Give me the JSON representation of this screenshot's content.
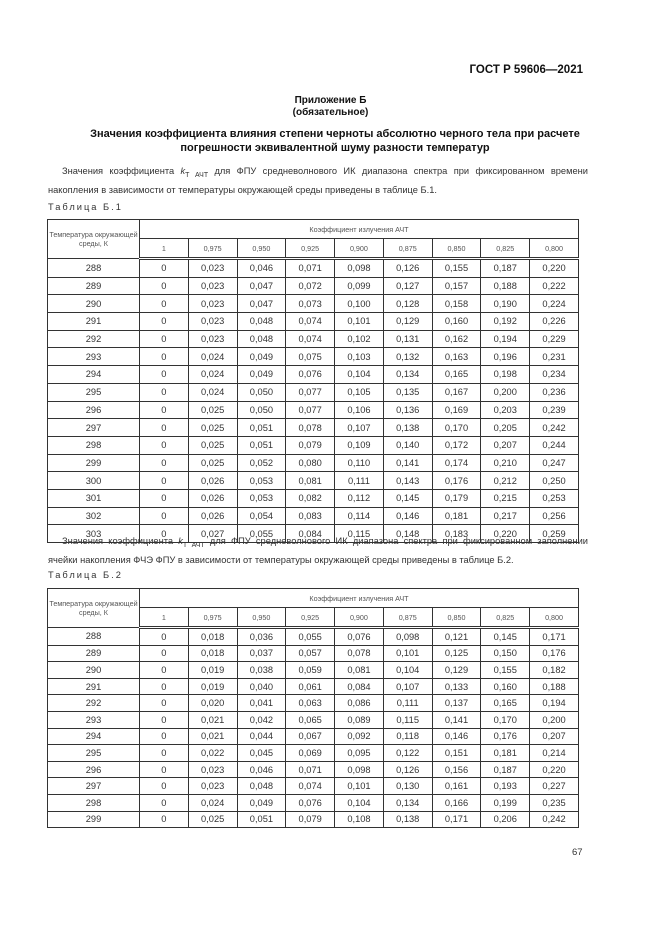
{
  "header": {
    "standard": "ГОСТ Р 59606—2021"
  },
  "appendix": {
    "title": "Приложение Б",
    "requirement": "(обязательное)"
  },
  "section_title": "Значения коэффициента влияния степени черноты абсолютно черного тела при расчете погрешности эквивалентной шуму разности температур",
  "coef_symbol": "k",
  "coef_subscript": "T АЧТ",
  "paragraph1": {
    "before": "Значения коэффициента ",
    "after": " для ФПУ средневолнового ИК диапазона спектра при фиксированном времени накопления в зависимости от температуры окружающей среды приведены в таблице Б.1."
  },
  "paragraph2": {
    "before": "Значения коэффициента ",
    "after": " для ФПУ средневолнового ИК диапазона спектра при фиксированном заполнении ячейки накопления ФЧЭ ФПУ в зависимости от температуры окружающей среды приведены в таблице Б.2."
  },
  "tables": [
    {
      "label": "Таблица Б.1",
      "temp_header": "Температура окружающей среды, К",
      "group_header": "Коэффициент излучения АЧТ",
      "columns": [
        "1",
        "0,975",
        "0,950",
        "0,925",
        "0,900",
        "0,875",
        "0,850",
        "0,825",
        "0,800"
      ],
      "rows": [
        [
          "288",
          "0",
          "0,023",
          "0,046",
          "0,071",
          "0,098",
          "0,126",
          "0,155",
          "0,187",
          "0,220"
        ],
        [
          "289",
          "0",
          "0,023",
          "0,047",
          "0,072",
          "0,099",
          "0,127",
          "0,157",
          "0,188",
          "0,222"
        ],
        [
          "290",
          "0",
          "0,023",
          "0,047",
          "0,073",
          "0,100",
          "0,128",
          "0,158",
          "0,190",
          "0,224"
        ],
        [
          "291",
          "0",
          "0,023",
          "0,048",
          "0,074",
          "0,101",
          "0,129",
          "0,160",
          "0,192",
          "0,226"
        ],
        [
          "292",
          "0",
          "0,023",
          "0,048",
          "0,074",
          "0,102",
          "0,131",
          "0,162",
          "0,194",
          "0,229"
        ],
        [
          "293",
          "0",
          "0,024",
          "0,049",
          "0,075",
          "0,103",
          "0,132",
          "0,163",
          "0,196",
          "0,231"
        ],
        [
          "294",
          "0",
          "0,024",
          "0,049",
          "0,076",
          "0,104",
          "0,134",
          "0,165",
          "0,198",
          "0,234"
        ],
        [
          "295",
          "0",
          "0,024",
          "0,050",
          "0,077",
          "0,105",
          "0,135",
          "0,167",
          "0,200",
          "0,236"
        ],
        [
          "296",
          "0",
          "0,025",
          "0,050",
          "0,077",
          "0,106",
          "0,136",
          "0,169",
          "0,203",
          "0,239"
        ],
        [
          "297",
          "0",
          "0,025",
          "0,051",
          "0,078",
          "0,107",
          "0,138",
          "0,170",
          "0,205",
          "0,242"
        ],
        [
          "298",
          "0",
          "0,025",
          "0,051",
          "0,079",
          "0,109",
          "0,140",
          "0,172",
          "0,207",
          "0,244"
        ],
        [
          "299",
          "0",
          "0,025",
          "0,052",
          "0,080",
          "0,110",
          "0,141",
          "0,174",
          "0,210",
          "0,247"
        ],
        [
          "300",
          "0",
          "0,026",
          "0,053",
          "0,081",
          "0,111",
          "0,143",
          "0,176",
          "0,212",
          "0,250"
        ],
        [
          "301",
          "0",
          "0,026",
          "0,053",
          "0,082",
          "0,112",
          "0,145",
          "0,179",
          "0,215",
          "0,253"
        ],
        [
          "302",
          "0",
          "0,026",
          "0,054",
          "0,083",
          "0,114",
          "0,146",
          "0,181",
          "0,217",
          "0,256"
        ],
        [
          "303",
          "0",
          "0,027",
          "0,055",
          "0,084",
          "0,115",
          "0,148",
          "0,183",
          "0,220",
          "0,259"
        ]
      ]
    },
    {
      "label": "Таблица Б.2",
      "temp_header": "Температура окружающей среды, К",
      "group_header": "Коэффициент излучения АЧТ",
      "columns": [
        "1",
        "0,975",
        "0,950",
        "0,925",
        "0,900",
        "0,875",
        "0,850",
        "0,825",
        "0,800"
      ],
      "rows": [
        [
          "288",
          "0",
          "0,018",
          "0,036",
          "0,055",
          "0,076",
          "0,098",
          "0,121",
          "0,145",
          "0,171"
        ],
        [
          "289",
          "0",
          "0,018",
          "0,037",
          "0,057",
          "0,078",
          "0,101",
          "0,125",
          "0,150",
          "0,176"
        ],
        [
          "290",
          "0",
          "0,019",
          "0,038",
          "0,059",
          "0,081",
          "0,104",
          "0,129",
          "0,155",
          "0,182"
        ],
        [
          "291",
          "0",
          "0,019",
          "0,040",
          "0,061",
          "0,084",
          "0,107",
          "0,133",
          "0,160",
          "0,188"
        ],
        [
          "292",
          "0",
          "0,020",
          "0,041",
          "0,063",
          "0,086",
          "0,111",
          "0,137",
          "0,165",
          "0,194"
        ],
        [
          "293",
          "0",
          "0,021",
          "0,042",
          "0,065",
          "0,089",
          "0,115",
          "0,141",
          "0,170",
          "0,200"
        ],
        [
          "294",
          "0",
          "0,021",
          "0,044",
          "0,067",
          "0,092",
          "0,118",
          "0,146",
          "0,176",
          "0,207"
        ],
        [
          "295",
          "0",
          "0,022",
          "0,045",
          "0,069",
          "0,095",
          "0,122",
          "0,151",
          "0,181",
          "0,214"
        ],
        [
          "296",
          "0",
          "0,023",
          "0,046",
          "0,071",
          "0,098",
          "0,126",
          "0,156",
          "0,187",
          "0,220"
        ],
        [
          "297",
          "0",
          "0,023",
          "0,048",
          "0,074",
          "0,101",
          "0,130",
          "0,161",
          "0,193",
          "0,227"
        ],
        [
          "298",
          "0",
          "0,024",
          "0,049",
          "0,076",
          "0,104",
          "0,134",
          "0,166",
          "0,199",
          "0,235"
        ],
        [
          "299",
          "0",
          "0,025",
          "0,051",
          "0,079",
          "0,108",
          "0,138",
          "0,171",
          "0,206",
          "0,242"
        ]
      ]
    }
  ],
  "page_number": "67"
}
